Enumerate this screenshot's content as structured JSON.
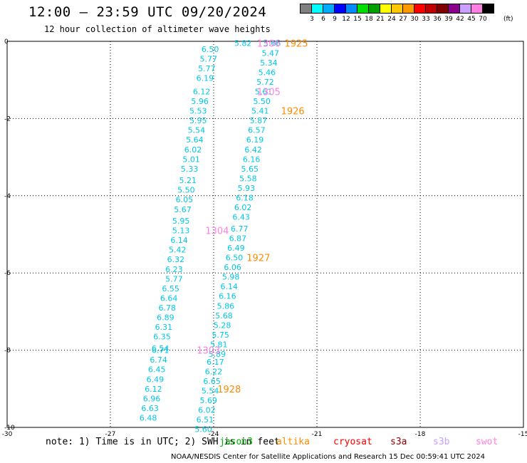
{
  "title": "12:00 – 23:59 UTC 09/20/2024",
  "subtitle": "12 hour collection of altimeter wave heights",
  "scale": {
    "colors": [
      "#808080",
      "#00ffff",
      "#00aaff",
      "#0000ff",
      "#008cff",
      "#00e000",
      "#00a000",
      "#ffff00",
      "#ffc800",
      "#ff9900",
      "#ff0000",
      "#c00000",
      "#800000",
      "#8b008b",
      "#c8a0ff",
      "#ff80e0",
      "#000000"
    ],
    "labels": [
      "3",
      "6",
      "9",
      "12",
      "15",
      "18",
      "21",
      "24",
      "27",
      "30",
      "33",
      "36",
      "39",
      "42",
      "45",
      "70"
    ],
    "unit": "(ft)"
  },
  "note": "note: 1) Time is in UTC; 2) SWH is in feet",
  "satellites": [
    {
      "name": "jason3",
      "color": "#00b000"
    },
    {
      "name": "altika",
      "color": "#ff8c00"
    },
    {
      "name": "cryosat",
      "color": "#ff0000"
    },
    {
      "name": "s3a",
      "color": "#8b0000"
    },
    {
      "name": "s3b",
      "color": "#c8a0ff"
    },
    {
      "name": "swot",
      "color": "#ff80e0"
    }
  ],
  "footer": "NOAA/NESDIS Center for Satellite Applications and Research    15 Dec 00:59:41 UTC 2024",
  "chart_data": {
    "type": "scatter",
    "title": "12:00 – 23:59 UTC 09/20/2024",
    "subtitle": "12 hour collection of altimeter wave heights",
    "xlim": [
      -30,
      -15
    ],
    "ylim": [
      -10,
      0
    ],
    "xticks": [
      "-30",
      "-27",
      "-24",
      "-21",
      "-18",
      "-15"
    ],
    "yticks": [
      "0",
      "-2",
      "-4",
      "-6",
      "-8",
      "-10"
    ],
    "grid": true,
    "swh_color": "#00c8e6",
    "series": [
      {
        "name": "track_left",
        "values": [
          {
            "x": -24.1,
            "y": -0.2,
            "v": "6.50"
          },
          {
            "x": -24.15,
            "y": -0.45,
            "v": "5.77"
          },
          {
            "x": -24.2,
            "y": -0.7,
            "v": "5.77"
          },
          {
            "x": -24.25,
            "y": -0.95,
            "v": "6.19"
          },
          {
            "x": -24.35,
            "y": -1.3,
            "v": "6.12"
          },
          {
            "x": -24.4,
            "y": -1.55,
            "v": "5.96"
          },
          {
            "x": -24.45,
            "y": -1.8,
            "v": "5.53"
          },
          {
            "x": -24.45,
            "y": -2.05,
            "v": "5.95"
          },
          {
            "x": -24.5,
            "y": -2.3,
            "v": "5.54"
          },
          {
            "x": -24.55,
            "y": -2.55,
            "v": "5.64"
          },
          {
            "x": -24.6,
            "y": -2.8,
            "v": "6.02"
          },
          {
            "x": -24.65,
            "y": -3.05,
            "v": "5.01"
          },
          {
            "x": -24.7,
            "y": -3.3,
            "v": "5.33"
          },
          {
            "x": -24.75,
            "y": -3.6,
            "v": "5.21"
          },
          {
            "x": -24.8,
            "y": -3.85,
            "v": "5.50"
          },
          {
            "x": -24.85,
            "y": -4.1,
            "v": "6.05"
          },
          {
            "x": -24.9,
            "y": -4.35,
            "v": "5.67"
          },
          {
            "x": -24.95,
            "y": -4.65,
            "v": "5.95"
          },
          {
            "x": -24.95,
            "y": -4.9,
            "v": "5.13"
          },
          {
            "x": -25.0,
            "y": -5.15,
            "v": "6.14"
          },
          {
            "x": -25.05,
            "y": -5.4,
            "v": "5.42"
          },
          {
            "x": -25.1,
            "y": -5.65,
            "v": "6.32"
          },
          {
            "x": -25.15,
            "y": -5.9,
            "v": "6.23"
          },
          {
            "x": -25.15,
            "y": -6.15,
            "v": "5.77"
          },
          {
            "x": -25.25,
            "y": -6.4,
            "v": "6.55"
          },
          {
            "x": -25.3,
            "y": -6.65,
            "v": "6.64"
          },
          {
            "x": -25.35,
            "y": -6.9,
            "v": "6.78"
          },
          {
            "x": -25.4,
            "y": -7.15,
            "v": "6.89"
          },
          {
            "x": -25.45,
            "y": -7.4,
            "v": "6.31"
          },
          {
            "x": -25.5,
            "y": -7.65,
            "v": "6.35"
          },
          {
            "x": -25.55,
            "y": -7.95,
            "v": "6.54"
          },
          {
            "x": -25.55,
            "y": -8.0,
            "v": "6.71"
          },
          {
            "x": -25.6,
            "y": -8.25,
            "v": "6.74"
          },
          {
            "x": -25.65,
            "y": -8.5,
            "v": "6.45"
          },
          {
            "x": -25.7,
            "y": -8.75,
            "v": "6.49"
          },
          {
            "x": -25.75,
            "y": -9.0,
            "v": "6.12"
          },
          {
            "x": -25.8,
            "y": -9.25,
            "v": "6.96"
          },
          {
            "x": -25.85,
            "y": -9.5,
            "v": "6.63"
          },
          {
            "x": -25.9,
            "y": -9.75,
            "v": "6.48"
          }
        ]
      },
      {
        "name": "track_right",
        "values": [
          {
            "x": -23.15,
            "y": -0.05,
            "v": "5.82"
          },
          {
            "x": -22.3,
            "y": -0.05,
            "v": "5.66"
          },
          {
            "x": -22.35,
            "y": -0.3,
            "v": "5.47"
          },
          {
            "x": -22.4,
            "y": -0.55,
            "v": "5.34"
          },
          {
            "x": -22.45,
            "y": -0.8,
            "v": "5.46"
          },
          {
            "x": -22.5,
            "y": -1.05,
            "v": "5.72"
          },
          {
            "x": -22.55,
            "y": -1.3,
            "v": "5.61"
          },
          {
            "x": -22.6,
            "y": -1.55,
            "v": "5.50"
          },
          {
            "x": -22.65,
            "y": -1.8,
            "v": "5.41"
          },
          {
            "x": -22.7,
            "y": -2.05,
            "v": "5.87"
          },
          {
            "x": -22.75,
            "y": -2.3,
            "v": "6.57"
          },
          {
            "x": -22.8,
            "y": -2.55,
            "v": "6.19"
          },
          {
            "x": -22.85,
            "y": -2.8,
            "v": "6.42"
          },
          {
            "x": -22.9,
            "y": -3.05,
            "v": "6.16"
          },
          {
            "x": -22.95,
            "y": -3.3,
            "v": "5.65"
          },
          {
            "x": -23.0,
            "y": -3.55,
            "v": "5.58"
          },
          {
            "x": -23.05,
            "y": -3.8,
            "v": "5.93"
          },
          {
            "x": -23.1,
            "y": -4.05,
            "v": "6.18"
          },
          {
            "x": -23.15,
            "y": -4.3,
            "v": "6.02"
          },
          {
            "x": -23.2,
            "y": -4.55,
            "v": "6.43"
          },
          {
            "x": -23.25,
            "y": -4.85,
            "v": "6.77"
          },
          {
            "x": -23.3,
            "y": -5.1,
            "v": "6.87"
          },
          {
            "x": -23.35,
            "y": -5.35,
            "v": "6.49"
          },
          {
            "x": -23.4,
            "y": -5.6,
            "v": "6.50"
          },
          {
            "x": -23.45,
            "y": -5.85,
            "v": "6.06"
          },
          {
            "x": -23.5,
            "y": -6.1,
            "v": "5.98"
          },
          {
            "x": -23.55,
            "y": -6.35,
            "v": "6.14"
          },
          {
            "x": -23.6,
            "y": -6.6,
            "v": "6.16"
          },
          {
            "x": -23.65,
            "y": -6.85,
            "v": "5.86"
          },
          {
            "x": -23.7,
            "y": -7.1,
            "v": "5.68"
          },
          {
            "x": -23.75,
            "y": -7.35,
            "v": "5.28"
          },
          {
            "x": -23.8,
            "y": -7.6,
            "v": "5.75"
          },
          {
            "x": -23.85,
            "y": -7.85,
            "v": "5.81"
          },
          {
            "x": -23.9,
            "y": -8.1,
            "v": "5.89"
          },
          {
            "x": -23.95,
            "y": -8.3,
            "v": "6.17"
          },
          {
            "x": -24.0,
            "y": -8.55,
            "v": "6.22"
          },
          {
            "x": -24.05,
            "y": -8.8,
            "v": "6.65"
          },
          {
            "x": -24.1,
            "y": -9.05,
            "v": "5.54"
          },
          {
            "x": -24.15,
            "y": -9.3,
            "v": "5.69"
          },
          {
            "x": -24.2,
            "y": -9.55,
            "v": "6.02"
          },
          {
            "x": -24.25,
            "y": -9.8,
            "v": "6.51"
          },
          {
            "x": -24.3,
            "y": -10.05,
            "v": "5.60"
          }
        ]
      }
    ],
    "annotations": [
      {
        "x": -22.4,
        "y": -0.05,
        "text": "1306",
        "color": "#ff80e0"
      },
      {
        "x": -21.6,
        "y": -0.05,
        "text": "1925",
        "color": "#ff8c00"
      },
      {
        "x": -22.4,
        "y": -1.3,
        "text": "1305",
        "color": "#ff80e0"
      },
      {
        "x": -21.7,
        "y": -1.8,
        "text": "1926",
        "color": "#ff8c00"
      },
      {
        "x": -23.9,
        "y": -4.9,
        "text": "1304",
        "color": "#ff80e0"
      },
      {
        "x": -22.7,
        "y": -5.6,
        "text": "1927",
        "color": "#ff8c00"
      },
      {
        "x": -24.15,
        "y": -8.0,
        "text": "1303",
        "color": "#ff80e0"
      },
      {
        "x": -23.55,
        "y": -9.0,
        "text": "1928",
        "color": "#ff8c00"
      }
    ]
  }
}
